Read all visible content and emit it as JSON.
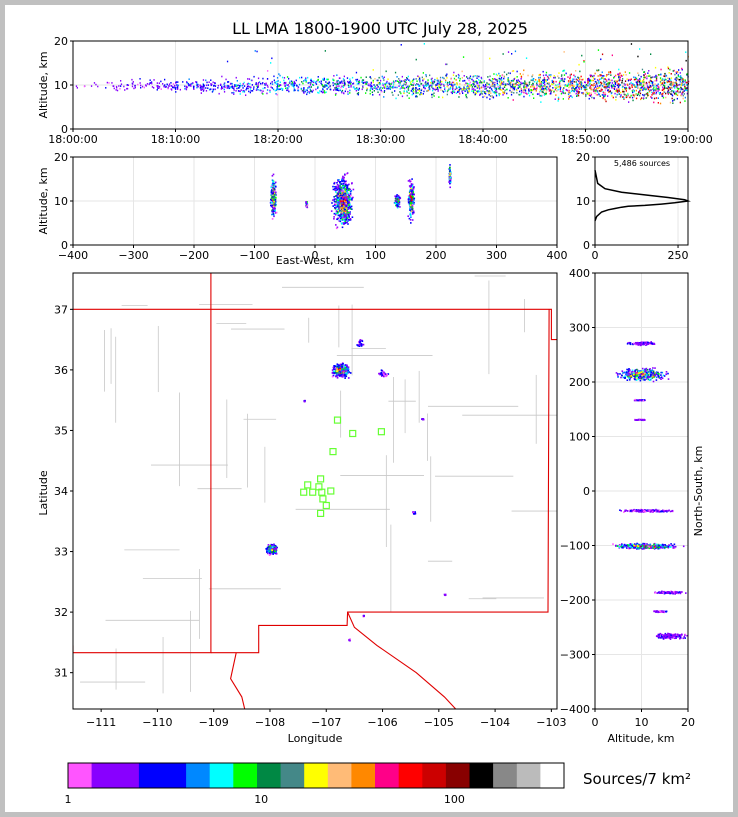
{
  "title": "LL LMA 1800-1900 UTC July 28, 2025",
  "colors": {
    "background": "#c0c0c0",
    "state_border": "#e00000",
    "county_border": "#c8c8c8",
    "station": "#66ff33",
    "histogram": "#000000"
  },
  "chart_data": [
    {
      "type": "scatter",
      "panel": "altitude-time",
      "ylabel": "Altitude, km",
      "xlabel": "",
      "xlim": [
        "18:00:00",
        "19:00:00"
      ],
      "x_ticks": [
        "18:00:00",
        "18:10:00",
        "18:20:00",
        "18:30:00",
        "18:40:00",
        "18:50:00",
        "19:00:00"
      ],
      "ylim": [
        0,
        20
      ],
      "y_ticks": [
        0,
        10,
        20
      ],
      "grid": true,
      "band": {
        "center_km": 10,
        "spread_km": 2.5
      }
    },
    {
      "type": "scatter",
      "panel": "altitude-eastwest",
      "xlabel": "East-West, km",
      "ylabel": "Altitude, km",
      "xlim": [
        -400,
        400
      ],
      "x_ticks": [
        -400,
        -300,
        -200,
        -100,
        0,
        100,
        200,
        300,
        400
      ],
      "ylim": [
        0,
        20
      ],
      "y_ticks": [
        0,
        10,
        20
      ],
      "grid": true,
      "clusters": [
        {
          "x_km": -70,
          "alt_km": 11,
          "width_km": 12,
          "height_km": 12
        },
        {
          "x_km": -15,
          "alt_km": 9.5,
          "width_km": 4,
          "height_km": 2
        },
        {
          "x_km": 45,
          "alt_km": 10,
          "width_km": 40,
          "height_km": 14
        },
        {
          "x_km": 135,
          "alt_km": 10,
          "width_km": 12,
          "height_km": 4
        },
        {
          "x_km": 158,
          "alt_km": 10.5,
          "width_km": 12,
          "height_km": 12
        },
        {
          "x_km": 222,
          "alt_km": 16,
          "width_km": 4,
          "height_km": 6
        }
      ]
    },
    {
      "type": "line",
      "panel": "altitude-histogram",
      "annotation": "5,486 sources",
      "xlim": [
        0,
        280
      ],
      "x_ticks": [
        0,
        250
      ],
      "ylim": [
        0,
        20
      ],
      "y_ticks": [
        0,
        10,
        20
      ],
      "x": [
        0,
        5,
        20,
        40,
        60,
        80,
        100,
        150,
        200,
        240,
        260,
        280,
        270,
        220,
        160,
        80,
        30,
        8,
        0
      ],
      "y": [
        5.5,
        6.5,
        7.5,
        8.0,
        8.3,
        8.6,
        8.8,
        9.0,
        9.3,
        9.6,
        9.8,
        10.0,
        10.3,
        10.8,
        11.3,
        12.0,
        12.8,
        14.0,
        17.0
      ]
    },
    {
      "type": "scatter",
      "panel": "plan-view",
      "xlabel": "Longitude",
      "ylabel": "Latitude",
      "xlim": [
        -111.5,
        -102.9
      ],
      "ylim": [
        30.4,
        37.6
      ],
      "x_ticks": [
        -111,
        -110,
        -109,
        -108,
        -107,
        -106,
        -105,
        -104,
        -103
      ],
      "y_ticks": [
        31,
        32,
        33,
        34,
        35,
        36,
        37
      ],
      "clusters": [
        {
          "lon": -106.75,
          "lat": 36.0,
          "w": 0.4,
          "h": 0.3,
          "dense": true
        },
        {
          "lon": -106.4,
          "lat": 36.45,
          "w": 0.15,
          "h": 0.15
        },
        {
          "lon": -106.0,
          "lat": 35.95,
          "w": 0.18,
          "h": 0.15
        },
        {
          "lon": -107.98,
          "lat": 33.05,
          "w": 0.25,
          "h": 0.2,
          "dense": true
        },
        {
          "lon": -105.45,
          "lat": 33.65,
          "w": 0.08,
          "h": 0.05
        },
        {
          "lon": -105.3,
          "lat": 35.2,
          "w": 0.05,
          "h": 0.04
        },
        {
          "lon": -106.35,
          "lat": 31.95,
          "w": 0.03,
          "h": 0.03
        },
        {
          "lon": -106.6,
          "lat": 31.55,
          "w": 0.03,
          "h": 0.08
        },
        {
          "lon": -104.9,
          "lat": 32.3,
          "w": 0.03,
          "h": 0.03
        },
        {
          "lon": -107.4,
          "lat": 35.5,
          "w": 0.03,
          "h": 0.03
        }
      ],
      "stations": [
        {
          "lon": -106.8,
          "lat": 35.17
        },
        {
          "lon": -106.53,
          "lat": 34.95
        },
        {
          "lon": -106.02,
          "lat": 34.98
        },
        {
          "lon": -106.88,
          "lat": 34.65
        },
        {
          "lon": -107.1,
          "lat": 34.2
        },
        {
          "lon": -107.33,
          "lat": 34.1
        },
        {
          "lon": -107.13,
          "lat": 34.07
        },
        {
          "lon": -107.4,
          "lat": 33.98
        },
        {
          "lon": -107.24,
          "lat": 33.98
        },
        {
          "lon": -107.08,
          "lat": 33.98
        },
        {
          "lon": -106.92,
          "lat": 34.0
        },
        {
          "lon": -107.06,
          "lat": 33.87
        },
        {
          "lon": -107.0,
          "lat": 33.76
        },
        {
          "lon": -107.1,
          "lat": 33.63
        }
      ]
    },
    {
      "type": "scatter",
      "panel": "northsouth-altitude",
      "xlabel": "Altitude, km",
      "ylabel": "North-South, km",
      "xlim": [
        0,
        20
      ],
      "x_ticks": [
        0,
        10,
        20
      ],
      "ylim": [
        -400,
        400
      ],
      "y_ticks": [
        -400,
        -300,
        -200,
        -100,
        0,
        100,
        200,
        300,
        400
      ],
      "grid": true,
      "clusters": [
        {
          "alt_km": 10,
          "ns_km": 215,
          "w": 14,
          "h": 30,
          "dense": true
        },
        {
          "alt_km": 10,
          "ns_km": 272,
          "w": 7,
          "h": 8
        },
        {
          "alt_km": 9.5,
          "ns_km": 168,
          "w": 4,
          "h": 3
        },
        {
          "alt_km": 9.5,
          "ns_km": 132,
          "w": 3,
          "h": 3
        },
        {
          "alt_km": 11,
          "ns_km": -100,
          "w": 18,
          "h": 12,
          "dense": true
        },
        {
          "alt_km": 11,
          "ns_km": -35,
          "w": 14,
          "h": 6
        },
        {
          "alt_km": 16,
          "ns_km": -185,
          "w": 8,
          "h": 6
        },
        {
          "alt_km": 16,
          "ns_km": -265,
          "w": 8,
          "h": 12
        },
        {
          "alt_km": 14,
          "ns_km": -220,
          "w": 4,
          "h": 4
        }
      ]
    },
    {
      "type": "heatmap",
      "panel": "colorbar",
      "label": "Sources/7 km²",
      "tick_labels": [
        "1",
        "10",
        "100"
      ],
      "colors": [
        "#ff55ff",
        "#8800ff",
        "#8800ff",
        "#0000ff",
        "#0000ff",
        "#0088ff",
        "#00ffff",
        "#00ff00",
        "#008844",
        "#448888",
        "#ffff00",
        "#ffbb77",
        "#ff8800",
        "#ff0088",
        "#ff0000",
        "#cc0000",
        "#880000",
        "#000000",
        "#888888",
        "#bbbbbb",
        "#ffffff"
      ]
    }
  ]
}
